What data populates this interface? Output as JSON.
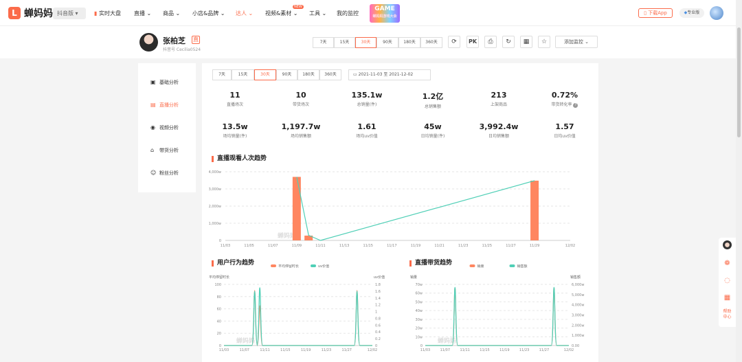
{
  "brand": {
    "name": "蝉妈妈",
    "platform": "抖音版"
  },
  "nav": {
    "items": [
      "实时大盘",
      "直播",
      "商品",
      "小店&品牌",
      "达人",
      "视频&素材",
      "工具",
      "我的监控"
    ],
    "new_badge": "NEW",
    "event": {
      "title": "GAME",
      "subtitle": "蝉妈妈游戏大会"
    },
    "download": "下载App",
    "pro": "专业版"
  },
  "profile": {
    "name": "张柏芝",
    "tag": "直",
    "id_text": "抖音号 Cecilia0524"
  },
  "top_ranges": [
    "7天",
    "15天",
    "30天",
    "90天",
    "180天",
    "360天"
  ],
  "top_icons": [
    "PK"
  ],
  "monitor_label": "添加监控",
  "sidebar": [
    "基础分析",
    "直播分析",
    "视频分析",
    "带货分析",
    "粉丝分析"
  ],
  "ranges": [
    "7天",
    "15天",
    "30天",
    "90天",
    "180天",
    "360天"
  ],
  "date_range": {
    "start": "2021-11-03",
    "sep": "至",
    "end": "2021-12-02"
  },
  "kpis": [
    {
      "value": "11",
      "label": "直播场次"
    },
    {
      "value": "10",
      "label": "带货场次"
    },
    {
      "value": "135.1w",
      "label": "总销量(件)"
    },
    {
      "value": "1.2亿",
      "label": "总销售额"
    },
    {
      "value": "213",
      "label": "上架商品"
    },
    {
      "value": "0.72%",
      "label": "带货转化率"
    },
    {
      "value": "13.5w",
      "label": "场均销量(件)"
    },
    {
      "value": "1,197.7w",
      "label": "场均销售额"
    },
    {
      "value": "1.61",
      "label": "场均uv价值"
    },
    {
      "value": "45w",
      "label": "日均销量(件)"
    },
    {
      "value": "3,992.4w",
      "label": "日均销售额"
    },
    {
      "value": "1.57",
      "label": "日均uv价值"
    }
  ],
  "watermark": "蝉妈妈",
  "float_tools": {
    "help": "帮助中心"
  },
  "chart_data": [
    {
      "type": "bar",
      "title": "直播观看人次趋势",
      "categories": [
        "11/03",
        "11/04",
        "11/05",
        "11/06",
        "11/07",
        "11/08",
        "11/09",
        "11/10",
        "11/11",
        "11/12",
        "11/13",
        "11/14",
        "11/15",
        "11/16",
        "11/17",
        "11/18",
        "11/19",
        "11/20",
        "11/21",
        "11/22",
        "11/23",
        "11/24",
        "11/25",
        "11/26",
        "11/27",
        "11/28",
        "11/29",
        "11/30",
        "12/01",
        "12/02"
      ],
      "tick_labels": [
        "11/03",
        "11/05",
        "11/07",
        "11/09",
        "11/11",
        "11/13",
        "11/15",
        "11/17",
        "11/19",
        "11/21",
        "11/23",
        "11/25",
        "11/27",
        "11/29",
        "12/02"
      ],
      "y_ticks": [
        "0",
        "1,000w",
        "2,000w",
        "3,000w",
        "4,000w"
      ],
      "ylim": [
        0,
        4000
      ],
      "bars": [
        {
          "x": "11/09",
          "value": 3700
        },
        {
          "x": "11/10",
          "value": 280
        },
        {
          "x": "11/29",
          "value": 3480
        }
      ],
      "line_points": [
        {
          "x": "11/09",
          "value": 3700
        },
        {
          "x": "11/10",
          "value": 300
        },
        {
          "x": "11/11",
          "value": 0
        },
        {
          "x": "11/29",
          "value": 3480
        }
      ],
      "colors": {
        "bar": "#ff8660",
        "line": "#4fcfb6"
      }
    },
    {
      "type": "line",
      "title": "用户行为趋势",
      "legend": [
        "平均停留时长",
        "uv价值"
      ],
      "ylabel_left": "平均停留时长",
      "ylabel_right": "uv价值",
      "y_ticks_left": [
        "0",
        "20",
        "40",
        "60",
        "80",
        "100"
      ],
      "y_ticks_right": [
        "0",
        "0.2",
        "0.4",
        "0.6",
        "0.8",
        "1",
        "1.2",
        "1.4",
        "1.6",
        "1.8"
      ],
      "tick_labels": [
        "11/03",
        "11/07",
        "11/11",
        "11/15",
        "11/19",
        "11/23",
        "11/27",
        "12/02"
      ],
      "ylim_left": [
        0,
        100
      ],
      "ylim_right": [
        0,
        1.8
      ],
      "series": [
        {
          "name": "平均停留时长",
          "axis": "left",
          "color": "#ff8660",
          "points": [
            {
              "x": "11/09",
              "value": 90
            },
            {
              "x": "11/10",
              "value": 65
            },
            {
              "x": "11/29",
              "value": 90
            }
          ]
        },
        {
          "name": "uv价值",
          "axis": "right",
          "color": "#4fcfb6",
          "points": [
            {
              "x": "11/09",
              "value": 1.6
            },
            {
              "x": "11/10",
              "value": 1.7
            },
            {
              "x": "11/29",
              "value": 1.6
            }
          ]
        }
      ]
    },
    {
      "type": "line",
      "title": "直播带货趋势",
      "legend": [
        "销量",
        "销售额"
      ],
      "ylabel_left": "销量",
      "ylabel_right": "销售额",
      "y_ticks_left": [
        "0",
        "10w",
        "20w",
        "30w",
        "40w",
        "50w",
        "60w",
        "70w"
      ],
      "y_ticks_right": [
        "0.00",
        "1,000w",
        "2,000w",
        "3,000w",
        "4,000w",
        "5,000w",
        "6,000w"
      ],
      "tick_labels": [
        "11/03",
        "11/07",
        "11/11",
        "11/15",
        "11/19",
        "11/23",
        "11/27",
        "12/02"
      ],
      "ylim_left": [
        0,
        70
      ],
      "ylim_right": [
        0,
        6000
      ],
      "series": [
        {
          "name": "销量",
          "axis": "left",
          "color": "#ff8660",
          "points": [
            {
              "x": "11/09",
              "value": 66
            },
            {
              "x": "11/29",
              "value": 66
            }
          ]
        },
        {
          "name": "销售额",
          "axis": "right",
          "color": "#4fcfb6",
          "points": [
            {
              "x": "11/09",
              "value": 5700
            },
            {
              "x": "11/29",
              "value": 5700
            }
          ]
        }
      ]
    }
  ]
}
